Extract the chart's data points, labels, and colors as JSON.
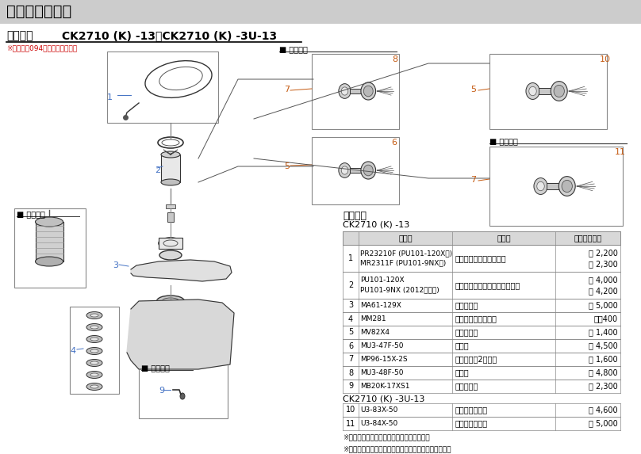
{
  "title": "シングル混合栓",
  "product_number_label": "製品品番",
  "product_number": " CK2710 (K) -13・CK2710 (K) -3U-13",
  "note_product": "※商品は買094をご覧ください。",
  "parts_list_title": "部品一覧",
  "section1_title": "CK2710 (K) -13",
  "section2_title": "CK2710 (K) -3U-13",
  "table_headers": [
    "",
    "品　番",
    "品　名",
    "希望小売価格"
  ],
  "rows": [
    {
      "num": "1",
      "part_num": "PR23210F (PU101-120X用)\nMR2311F (PU101-9NX用)",
      "name": "シングルレバーハンドル",
      "price": "･ 2,200\n･ 2,300"
    },
    {
      "num": "2",
      "part_num": "PU101-120X\nPU101-9NX (2012年以前)",
      "name": "シングルレバー用カートリッジ",
      "price": "･ 4,000\n･ 4,200"
    },
    {
      "num": "3",
      "part_num": "MA61-129X",
      "name": "上付吐水口",
      "price": "･ 5,000"
    },
    {
      "num": "4",
      "part_num": "MM281",
      "name": "断熱パイプ用整流器",
      "price": "･　400"
    },
    {
      "num": "5",
      "part_num": "MV82X4",
      "name": "逆止弁コア",
      "price": "･ 1,400"
    },
    {
      "num": "6",
      "part_num": "MU3-47F-50",
      "name": "偏心管",
      "price": "･ 4,500"
    },
    {
      "num": "7",
      "part_num": "MP96-15X-2S",
      "name": "パッキン（2個入）",
      "price": "･ 1,600"
    },
    {
      "num": "8",
      "part_num": "MU3-48F-50",
      "name": "偏心管",
      "price": "･ 4,800"
    },
    {
      "num": "9",
      "part_num": "MB20K-17XS1",
      "name": "水抜プラグ",
      "price": "･ 2,300"
    }
  ],
  "rows2": [
    {
      "num": "10",
      "part_num": "U3-83X-50",
      "name": "ベンリー偏心管",
      "price": "･ 4,600"
    },
    {
      "num": "11",
      "part_num": "U3-84X-50",
      "name": "ベンリー偏心管",
      "price": "･ 5,000"
    }
  ],
  "footnotes": [
    "※表中に品番のない部品は手配できません。",
    "※１・２に関しては、カートリッジをご確認ください。"
  ],
  "label_kanreichi": "■ 寒冷地用",
  "bg_color": "#ffffff",
  "title_bg_color": "#cccccc",
  "table_header_bg": "#d8d8d8",
  "table_border_color": "#888888",
  "title_color": "#000000",
  "label_num_color": "#4472c4",
  "label_num_color2": "#c55a11"
}
